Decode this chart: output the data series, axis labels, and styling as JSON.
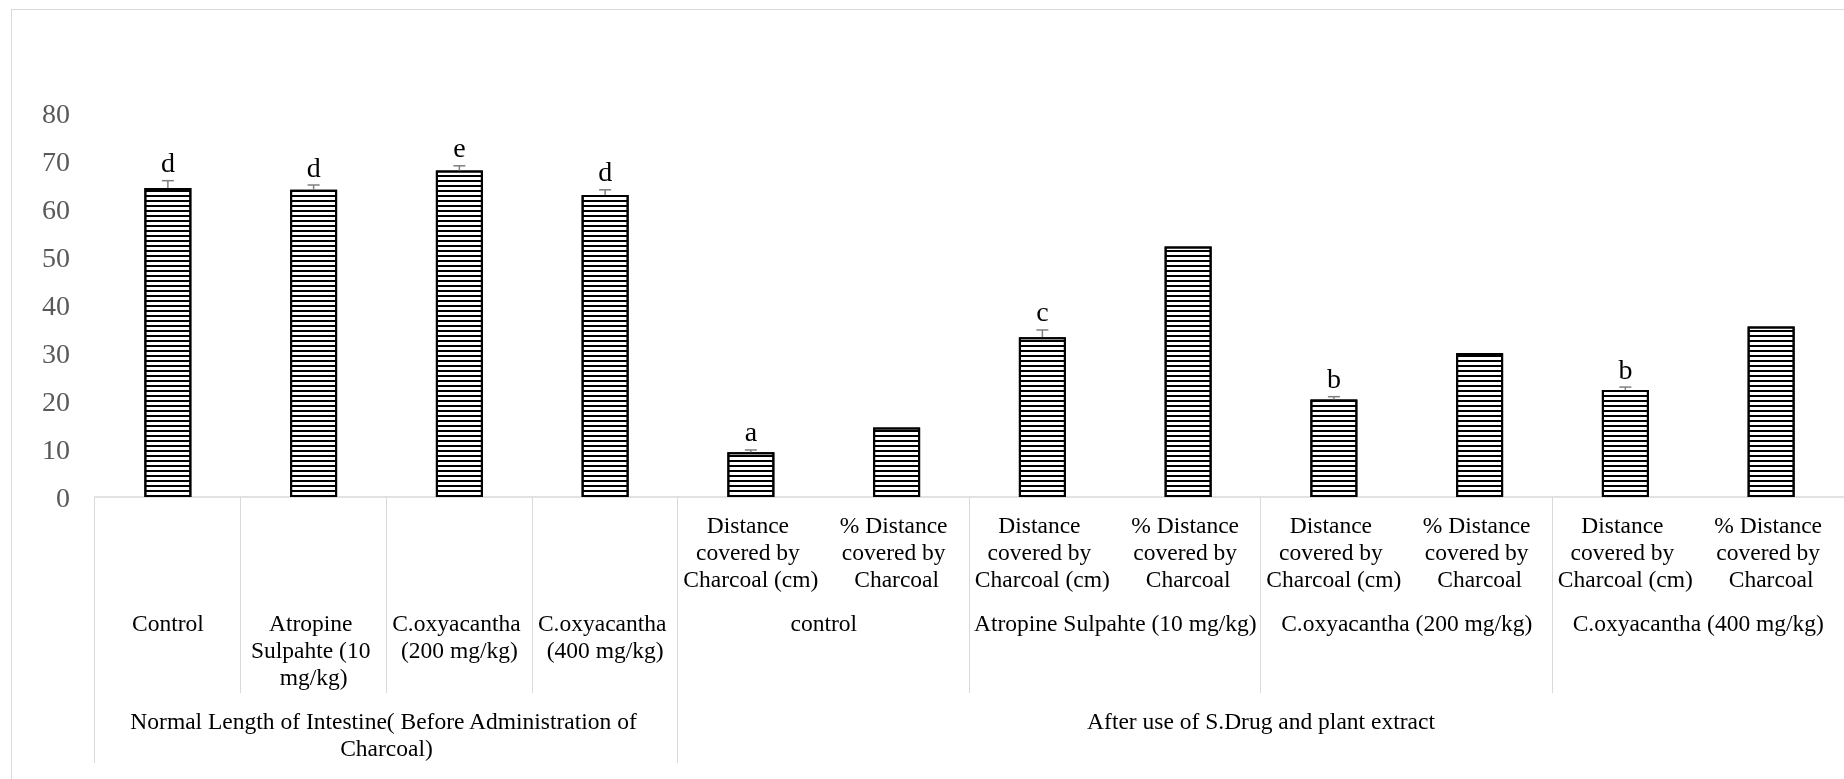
{
  "chart_data": {
    "type": "bar",
    "categories": [
      null,
      null,
      null,
      null,
      "Distance covered by Charcoal (cm)",
      "% Distance covered by Charcoal",
      "Distance covered by Charcoal (cm)",
      "% Distance covered by Charcoal",
      "Distance covered by Charcoal (cm)",
      "% Distance covered by Charcoal",
      "Distance covered by Charcoal (cm)",
      "% Distance covered by Charcoal"
    ],
    "values": [
      64.4,
      64.0,
      68.0,
      62.9,
      9.3,
      14.5,
      33.3,
      52.2,
      20.3,
      30.0,
      22.3,
      35.5
    ],
    "color": "#000000",
    "errors": [
      [
        64.4,
        65.9
      ],
      [
        64.0,
        65.0
      ],
      [
        68.0,
        69.0
      ],
      [
        62.9,
        64.0
      ],
      [
        9.3,
        9.8
      ],
      null,
      [
        33.3,
        34.8
      ],
      null,
      [
        20.3,
        20.9
      ],
      null,
      [
        22.3,
        22.9
      ],
      null
    ],
    "value_labels": [
      "d",
      "d",
      "e",
      "d",
      "a",
      null,
      "c",
      null,
      "b",
      null,
      "b",
      null
    ],
    "ylim": [
      0,
      80
    ],
    "yticks": [
      0,
      10,
      20,
      30,
      40,
      50,
      60,
      70,
      80
    ],
    "annotations": [
      "Control",
      "Atropine Sulpahte (10 mg/kg)",
      "C.oxyacantha (200 mg/kg)",
      "C.oxyacantha (400 mg/kg)",
      "control",
      "Atropine Sulpahte (10 mg/kg)",
      "C.oxyacantha (200 mg/kg)",
      "C.oxyacantha (400 mg/kg)",
      "Normal Length of Intestine( Before Administration of Charcoal)",
      "After use of S.Drug and plant extract"
    ]
  }
}
